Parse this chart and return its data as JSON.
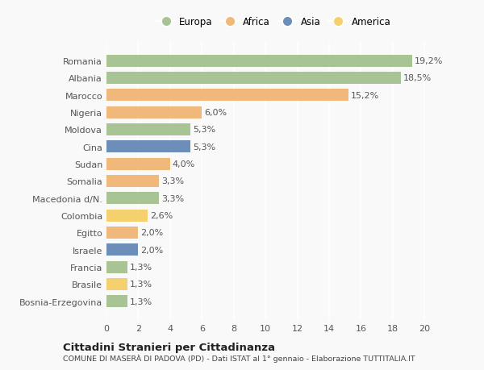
{
  "categories": [
    "Romania",
    "Albania",
    "Marocco",
    "Nigeria",
    "Moldova",
    "Cina",
    "Sudan",
    "Somalia",
    "Macedonia d/N.",
    "Colombia",
    "Egitto",
    "Israele",
    "Francia",
    "Brasile",
    "Bosnia-Erzegovina"
  ],
  "values": [
    19.2,
    18.5,
    15.2,
    6.0,
    5.3,
    5.3,
    4.0,
    3.3,
    3.3,
    2.6,
    2.0,
    2.0,
    1.3,
    1.3,
    1.3
  ],
  "labels": [
    "19,2%",
    "18,5%",
    "15,2%",
    "6,0%",
    "5,3%",
    "5,3%",
    "4,0%",
    "3,3%",
    "3,3%",
    "2,6%",
    "2,0%",
    "2,0%",
    "1,3%",
    "1,3%",
    "1,3%"
  ],
  "continents": [
    "Europa",
    "Europa",
    "Africa",
    "Africa",
    "Europa",
    "Asia",
    "Africa",
    "Africa",
    "Europa",
    "America",
    "Africa",
    "Asia",
    "Europa",
    "America",
    "Europa"
  ],
  "continent_colors": {
    "Europa": "#a8c494",
    "Africa": "#f0b87a",
    "Asia": "#6b8fb8",
    "America": "#f5d06e"
  },
  "legend_order": [
    "Europa",
    "Africa",
    "Asia",
    "America"
  ],
  "xlim": [
    0,
    21
  ],
  "xticks": [
    0,
    2,
    4,
    6,
    8,
    10,
    12,
    14,
    16,
    18,
    20
  ],
  "title": "Cittadini Stranieri per Cittadinanza",
  "subtitle": "COMUNE DI MASERÀ DI PADOVA (PD) - Dati ISTAT al 1° gennaio - Elaborazione TUTTITALIA.IT",
  "bg_color": "#f9f9f9",
  "bar_height": 0.7,
  "grid_color": "#ffffff",
  "label_fontsize": 8,
  "tick_fontsize": 8
}
